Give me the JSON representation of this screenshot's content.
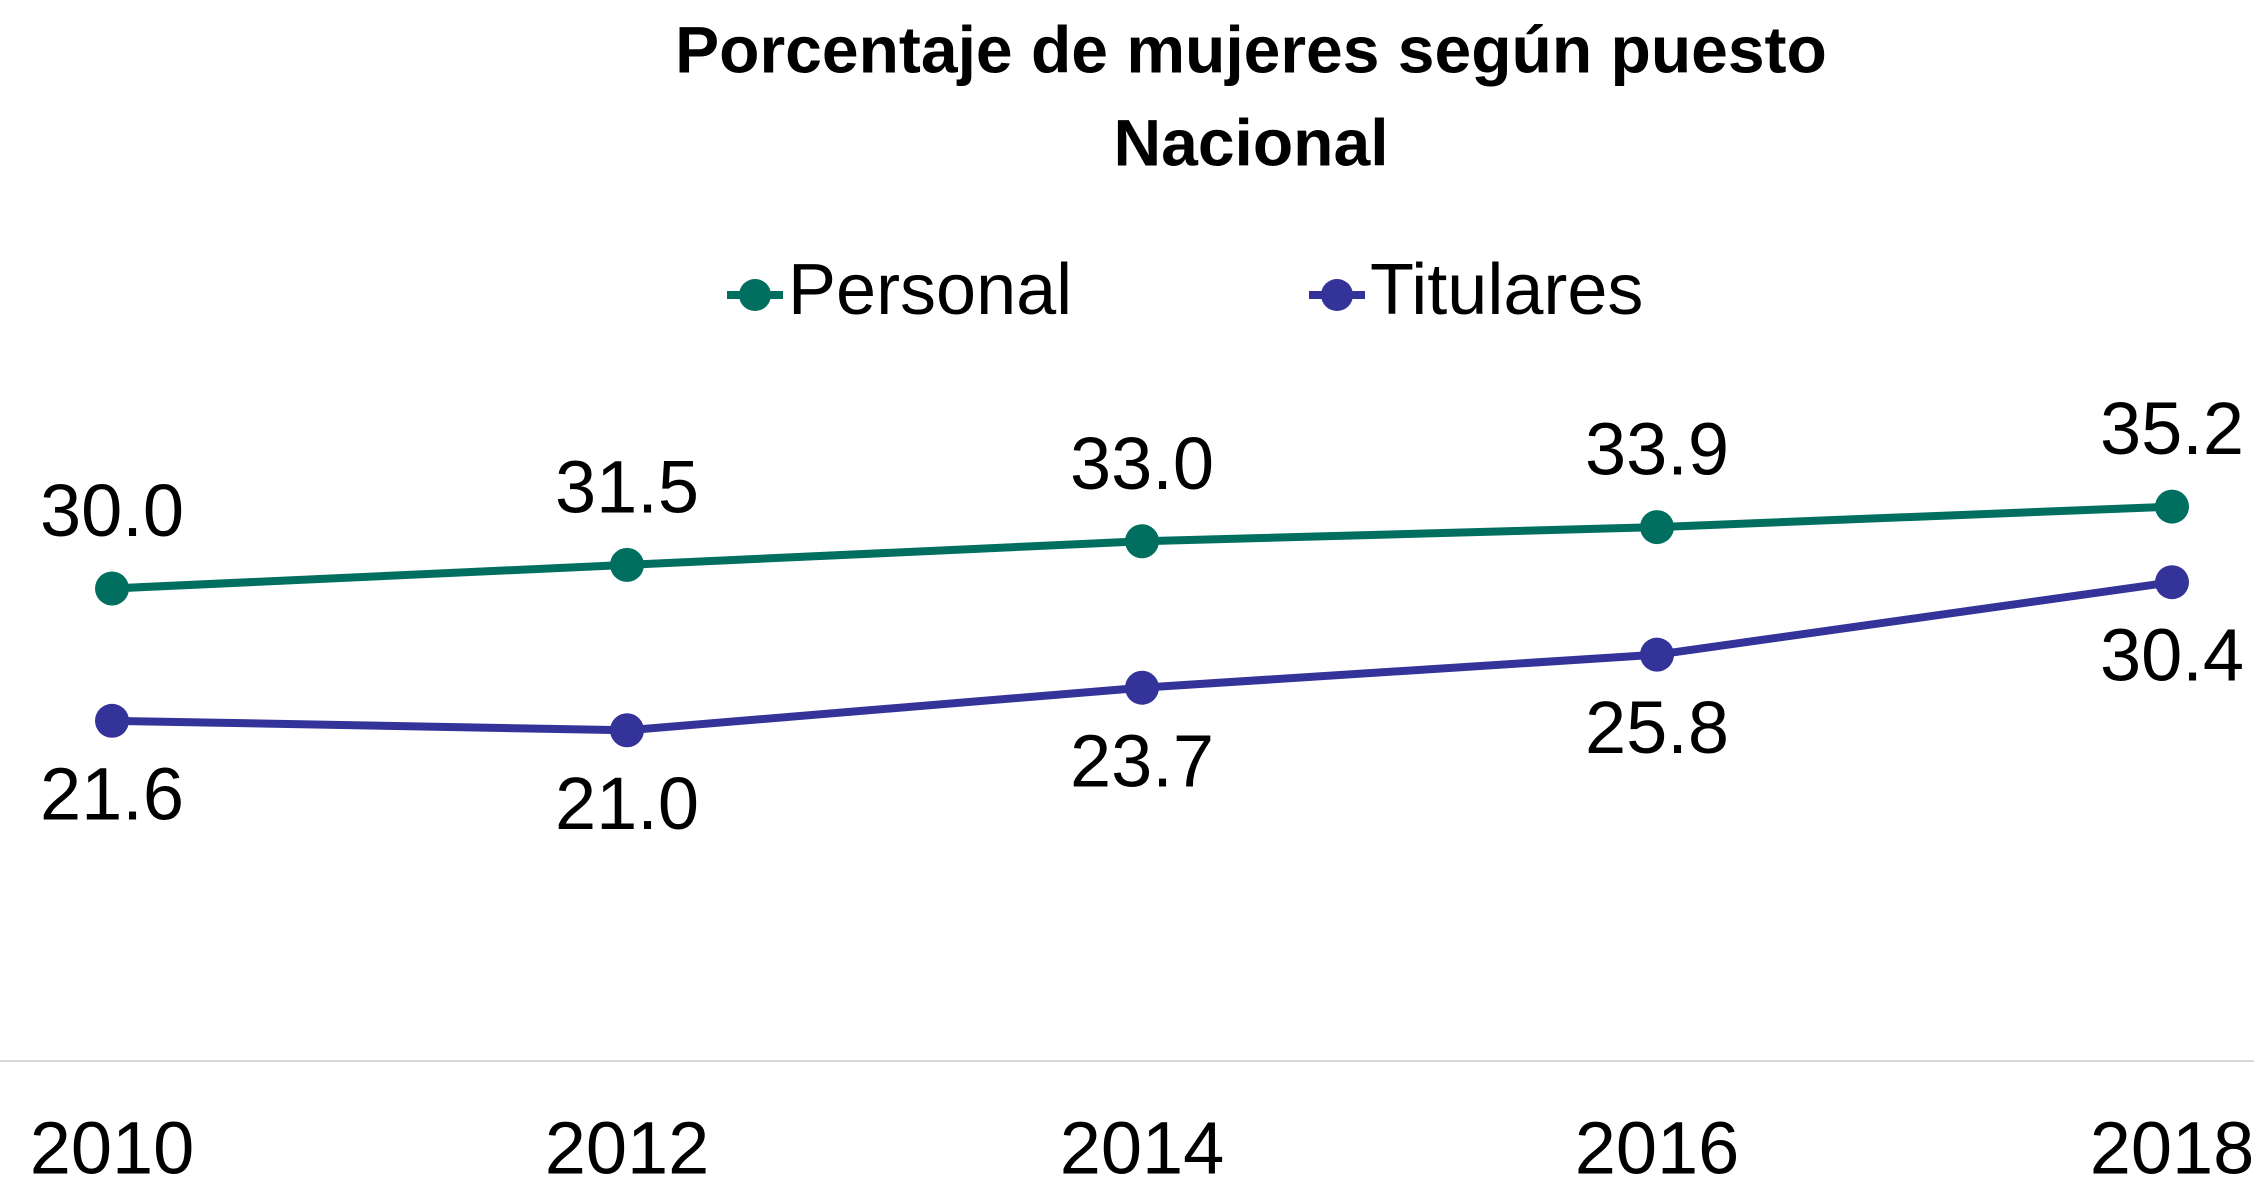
{
  "chart_data": {
    "type": "line",
    "title": "Porcentaje de mujeres según puesto",
    "subtitle": "Nacional",
    "categories": [
      "2010",
      "2012",
      "2014",
      "2016",
      "2018"
    ],
    "series": [
      {
        "name": "Personal",
        "color": "#006f5f",
        "values": [
          30.0,
          31.5,
          33.0,
          33.9,
          35.2
        ],
        "value_labels": [
          "30.0",
          "31.5",
          "33.0",
          "33.9",
          "35.2"
        ]
      },
      {
        "name": "Titulares",
        "color": "#333399",
        "values": [
          21.6,
          21.0,
          23.7,
          25.8,
          30.4
        ],
        "value_labels": [
          "21.6",
          "21.0",
          "23.7",
          "25.8",
          "30.4"
        ]
      }
    ],
    "ylim": [
      0,
      40
    ],
    "grid": false
  }
}
